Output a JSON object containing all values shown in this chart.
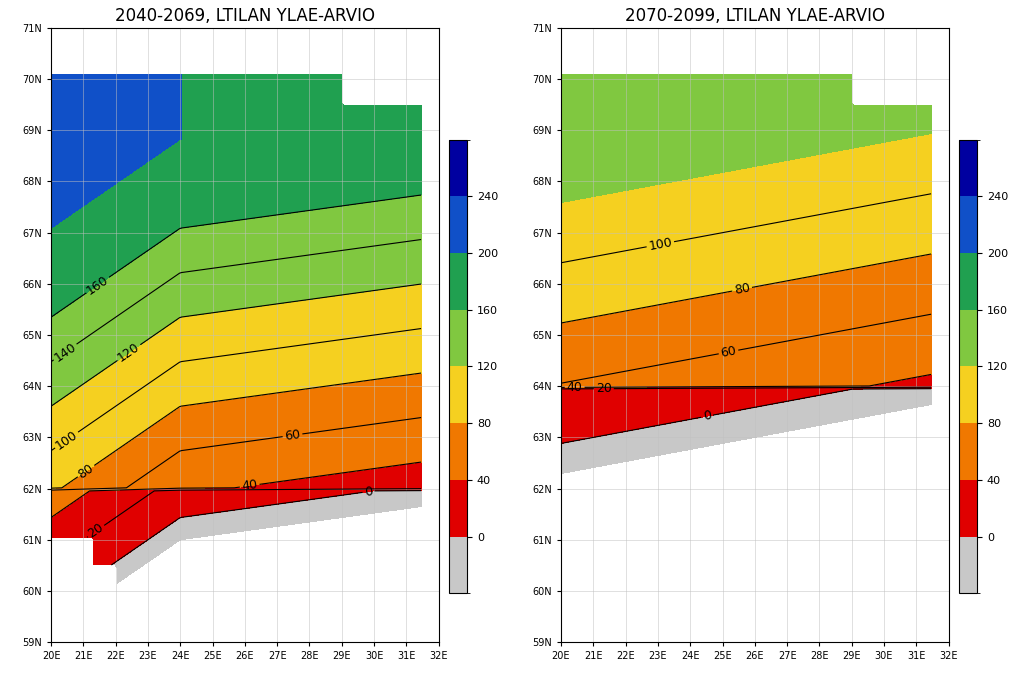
{
  "titles": [
    "2040-2069, LTILAN YLAE-ARVIO",
    "2070-2099, LTILAN YLAE-ARVIO"
  ],
  "lon_min": 20,
  "lon_max": 32,
  "lat_min": 59,
  "lat_max": 71,
  "lon_ticks": [
    20,
    21,
    22,
    23,
    24,
    25,
    26,
    27,
    28,
    29,
    30,
    31,
    32
  ],
  "lat_ticks": [
    59,
    60,
    61,
    62,
    63,
    64,
    65,
    66,
    67,
    68,
    69,
    70,
    71
  ],
  "colorbar_levels": [
    0,
    40,
    80,
    120,
    160,
    200,
    240
  ],
  "colorbar_colors": [
    "#c8c8c8",
    "#e00000",
    "#f07800",
    "#f5d020",
    "#80c840",
    "#20a050",
    "#1050c8",
    "#0000a0"
  ],
  "colorbar_labels": [
    "0",
    "40",
    "80",
    "120",
    "160",
    "200",
    "240"
  ],
  "contour_levels_1": [
    0,
    20,
    40,
    60,
    80,
    100,
    120,
    140,
    160
  ],
  "contour_levels_2": [
    0,
    20,
    40,
    60,
    80,
    100
  ],
  "background_color": "#ffffff",
  "grid_color": "#c0c0c0",
  "contour_label_fontsize": 9,
  "title_fontsize": 12
}
